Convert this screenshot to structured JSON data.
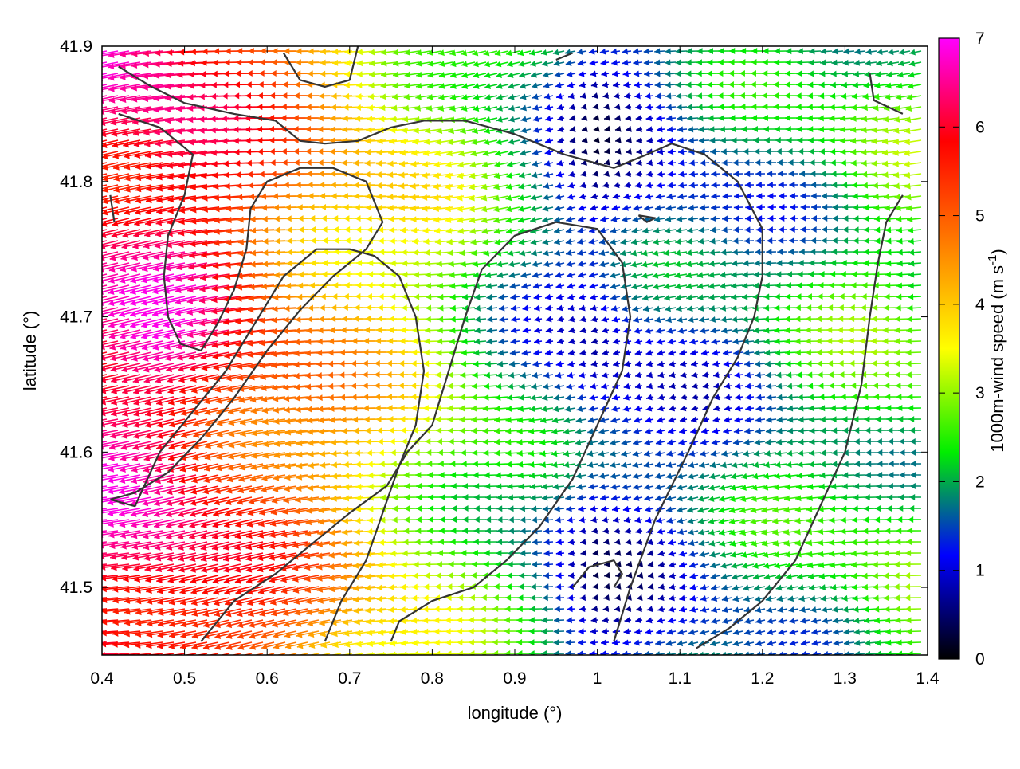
{
  "chart_data": {
    "type": "vector field with contours",
    "xlabel": "longitude (°)",
    "ylabel": "latitude (°)",
    "xlim": [
      0.4,
      1.4
    ],
    "ylim": [
      41.45,
      41.9
    ],
    "xticks": [
      "0.4",
      "0.5",
      "0.6",
      "0.7",
      "0.8",
      "0.9",
      "1",
      "1.1",
      "1.2",
      "1.3",
      "1.4"
    ],
    "yticks": [
      "41.5",
      "41.6",
      "41.7",
      "41.8",
      "41.9"
    ],
    "colorbar": {
      "label": "1000m-wind speed (m s",
      "label_superscript": "-1",
      "label_suffix": ")",
      "range": [
        0,
        7
      ],
      "ticks": [
        "0",
        "1",
        "2",
        "3",
        "4",
        "5",
        "6",
        "7"
      ],
      "colors": [
        "#000000",
        "#0000ff",
        "#00ee00",
        "#ffff00",
        "#ff7f00",
        "#ff0000",
        "#ff00ff"
      ]
    },
    "wind_field": {
      "arrow_direction": "westward",
      "approx_speed_by_region": [
        {
          "region": "west",
          "lon_range": [
            0.4,
            0.6
          ],
          "speed": 6.3
        },
        {
          "region": "centre",
          "lon_range": [
            0.75,
            0.9
          ],
          "speed": 3.0
        },
        {
          "region": "east-centre",
          "lon_range": [
            0.95,
            1.05
          ],
          "speed": 1.0
        },
        {
          "region": "far east",
          "lon_range": [
            1.3,
            1.4
          ],
          "speed": 2.5
        }
      ]
    },
    "contours": [
      [
        [
          0.42,
          41.885
        ],
        [
          0.46,
          41.87
        ],
        [
          0.5,
          41.858
        ],
        [
          0.56,
          41.85
        ],
        [
          0.61,
          41.845
        ],
        [
          0.64,
          41.83
        ],
        [
          0.67,
          41.828
        ],
        [
          0.71,
          41.83
        ],
        [
          0.75,
          41.84
        ],
        [
          0.79,
          41.845
        ],
        [
          0.84,
          41.845
        ],
        [
          0.9,
          41.835
        ],
        [
          0.96,
          41.82
        ],
        [
          1.02,
          41.81
        ],
        [
          1.06,
          41.82
        ],
        [
          1.09,
          41.828
        ],
        [
          1.13,
          41.82
        ],
        [
          1.17,
          41.8
        ],
        [
          1.2,
          41.765
        ],
        [
          1.2,
          41.73
        ],
        [
          1.19,
          41.7
        ],
        [
          1.17,
          41.67
        ],
        [
          1.14,
          41.64
        ],
        [
          1.11,
          41.6
        ],
        [
          1.07,
          41.55
        ],
        [
          1.04,
          41.5
        ],
        [
          1.02,
          41.46
        ]
      ],
      [
        [
          0.42,
          41.85
        ],
        [
          0.47,
          41.84
        ],
        [
          0.51,
          41.82
        ],
        [
          0.5,
          41.79
        ],
        [
          0.48,
          41.76
        ],
        [
          0.475,
          41.73
        ],
        [
          0.48,
          41.7
        ],
        [
          0.495,
          41.68
        ],
        [
          0.52,
          41.675
        ],
        [
          0.54,
          41.695
        ],
        [
          0.56,
          41.72
        ],
        [
          0.575,
          41.75
        ],
        [
          0.58,
          41.78
        ],
        [
          0.6,
          41.8
        ],
        [
          0.64,
          41.81
        ],
        [
          0.68,
          41.81
        ],
        [
          0.72,
          41.8
        ],
        [
          0.74,
          41.77
        ],
        [
          0.72,
          41.75
        ],
        [
          0.68,
          41.73
        ],
        [
          0.64,
          41.705
        ],
        [
          0.6,
          41.675
        ],
        [
          0.56,
          41.64
        ],
        [
          0.52,
          41.61
        ],
        [
          0.48,
          41.585
        ],
        [
          0.44,
          41.57
        ],
        [
          0.41,
          41.565
        ]
      ],
      [
        [
          0.41,
          41.565
        ],
        [
          0.44,
          41.56
        ],
        [
          0.47,
          41.6
        ],
        [
          0.51,
          41.63
        ],
        [
          0.55,
          41.66
        ],
        [
          0.58,
          41.69
        ],
        [
          0.62,
          41.73
        ],
        [
          0.66,
          41.75
        ],
        [
          0.7,
          41.75
        ],
        [
          0.73,
          41.745
        ],
        [
          0.76,
          41.73
        ],
        [
          0.78,
          41.7
        ],
        [
          0.79,
          41.66
        ],
        [
          0.78,
          41.62
        ],
        [
          0.76,
          41.59
        ],
        [
          0.74,
          41.555
        ],
        [
          0.72,
          41.52
        ],
        [
          0.69,
          41.49
        ],
        [
          0.67,
          41.46
        ]
      ],
      [
        [
          0.52,
          41.46
        ],
        [
          0.56,
          41.49
        ],
        [
          0.61,
          41.51
        ],
        [
          0.66,
          41.535
        ],
        [
          0.7,
          41.555
        ],
        [
          0.745,
          41.575
        ],
        [
          0.77,
          41.6
        ],
        [
          0.8,
          41.62
        ],
        [
          0.82,
          41.66
        ],
        [
          0.84,
          41.7
        ],
        [
          0.86,
          41.735
        ],
        [
          0.9,
          41.76
        ],
        [
          0.95,
          41.77
        ],
        [
          1.0,
          41.765
        ],
        [
          1.03,
          41.74
        ],
        [
          1.04,
          41.7
        ],
        [
          1.03,
          41.66
        ],
        [
          1.0,
          41.62
        ],
        [
          0.97,
          41.58
        ],
        [
          0.93,
          41.545
        ],
        [
          0.89,
          41.52
        ],
        [
          0.85,
          41.5
        ],
        [
          0.8,
          41.49
        ],
        [
          0.76,
          41.475
        ],
        [
          0.75,
          41.46
        ]
      ],
      [
        [
          1.12,
          41.455
        ],
        [
          1.16,
          41.47
        ],
        [
          1.2,
          41.49
        ],
        [
          1.24,
          41.52
        ],
        [
          1.27,
          41.56
        ],
        [
          1.3,
          41.6
        ],
        [
          1.32,
          41.65
        ],
        [
          1.33,
          41.7
        ],
        [
          1.34,
          41.74
        ],
        [
          1.35,
          41.77
        ],
        [
          1.37,
          41.79
        ]
      ],
      [
        [
          1.33,
          41.88
        ],
        [
          1.335,
          41.86
        ],
        [
          1.37,
          41.85
        ]
      ],
      [
        [
          0.97,
          41.5
        ],
        [
          0.99,
          41.515
        ],
        [
          1.02,
          41.52
        ],
        [
          1.03,
          41.51
        ],
        [
          1.02,
          41.5
        ]
      ],
      [
        [
          1.05,
          41.775
        ],
        [
          1.07,
          41.773
        ],
        [
          1.06,
          41.77
        ],
        [
          1.05,
          41.775
        ]
      ],
      [
        [
          0.62,
          41.895
        ],
        [
          0.64,
          41.875
        ],
        [
          0.67,
          41.87
        ],
        [
          0.7,
          41.875
        ],
        [
          0.71,
          41.9
        ]
      ],
      [
        [
          0.95,
          41.89
        ],
        [
          0.97,
          41.895
        ]
      ],
      [
        [
          0.41,
          41.79
        ],
        [
          0.415,
          41.77
        ]
      ]
    ]
  }
}
